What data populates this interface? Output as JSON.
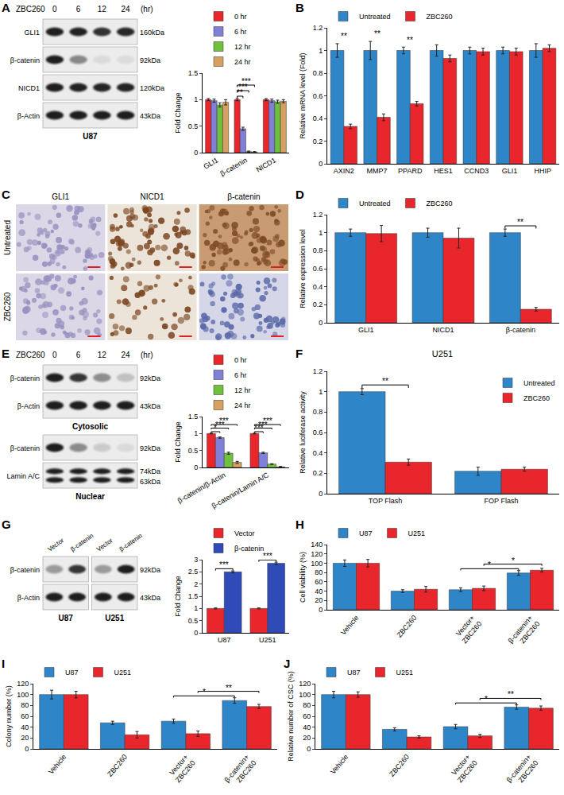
{
  "chart_data": [
    {
      "type": "bar",
      "ylabel": "Fold Change",
      "categories": [
        "GLI1",
        "β-catenin",
        "NICD1"
      ],
      "series": [
        {
          "name": "0 hr",
          "color": "#e8262b",
          "values": [
            1,
            1,
            1
          ],
          "errors": [
            0.02,
            0.02,
            0.02
          ]
        },
        {
          "name": "6 hr",
          "color": "#8080d8",
          "values": [
            0.98,
            0.45,
            0.98
          ],
          "errors": [
            0.03,
            0.03,
            0.03
          ]
        },
        {
          "name": "12 hr",
          "color": "#70c040",
          "values": [
            0.9,
            0.02,
            0.96
          ],
          "errors": [
            0.04,
            0.01,
            0.03
          ]
        },
        {
          "name": "24 hr",
          "color": "#d6a060",
          "values": [
            0.95,
            0.01,
            0.97
          ],
          "errors": [
            0.05,
            0.01,
            0.03
          ]
        }
      ],
      "ylim": [
        0,
        1.5
      ],
      "yticks": [
        0,
        0.5,
        1,
        1.5
      ],
      "legend": "top",
      "significance": [
        {
          "category": "β-catenin",
          "from": "0 hr",
          "to": "6 hr",
          "label": "**"
        },
        {
          "category": "β-catenin",
          "from": "0 hr",
          "to": "12 hr",
          "label": "***"
        },
        {
          "category": "β-catenin",
          "from": "0 hr",
          "to": "24 hr",
          "label": "***"
        }
      ]
    },
    {
      "type": "bar",
      "panel": "B",
      "ylabel": "Relative mRNA level (Fold)",
      "categories": [
        "AXIN2",
        "MMP7",
        "PPARD",
        "HES1",
        "CCND3",
        "GLI1",
        "HHIP"
      ],
      "series": [
        {
          "name": "Untreated",
          "color": "#2e86c9",
          "values": [
            1,
            1,
            1,
            1,
            1,
            1,
            1
          ],
          "errors": [
            0.06,
            0.08,
            0.03,
            0.05,
            0.03,
            0.03,
            0.06
          ]
        },
        {
          "name": "ZBC260",
          "color": "#e8262b",
          "values": [
            0.33,
            0.41,
            0.53,
            0.93,
            0.99,
            0.99,
            1.02
          ],
          "errors": [
            0.02,
            0.03,
            0.02,
            0.03,
            0.03,
            0.03,
            0.03
          ]
        }
      ],
      "ylim": [
        0,
        1.2
      ],
      "yticks": [
        0,
        0.2,
        0.4,
        0.6,
        0.8,
        1,
        1.2
      ],
      "legend": "top",
      "significance": [
        {
          "category": "AXIN2",
          "label": "**"
        },
        {
          "category": "MMP7",
          "label": "**"
        },
        {
          "category": "PPARD",
          "label": "**"
        }
      ]
    },
    {
      "type": "bar",
      "panel": "D",
      "ylabel": "Relative expression level",
      "categories": [
        "GLI1",
        "NICD1",
        "β-catenin"
      ],
      "series": [
        {
          "name": "Untreated",
          "color": "#2e86c9",
          "values": [
            1,
            1,
            1
          ],
          "errors": [
            0.04,
            0.05,
            0.04
          ]
        },
        {
          "name": "ZBC260",
          "color": "#e8262b",
          "values": [
            0.99,
            0.94,
            0.15
          ],
          "errors": [
            0.09,
            0.11,
            0.02
          ]
        }
      ],
      "ylim": [
        0,
        1.2
      ],
      "yticks": [
        0,
        0.2,
        0.4,
        0.6,
        0.8,
        1,
        1.2
      ],
      "legend": "top",
      "significance": [
        {
          "category": "β-catenin",
          "from": "Untreated",
          "to": "ZBC260",
          "label": "**"
        }
      ]
    },
    {
      "type": "bar",
      "ylabel": "Fold Change",
      "categories": [
        "β-catenin/β-Actin",
        "β-catenin/Lamin A/C"
      ],
      "series": [
        {
          "name": "0 hr",
          "color": "#e8262b",
          "values": [
            1,
            1
          ],
          "errors": [
            0.01,
            0.01
          ]
        },
        {
          "name": "6 hr",
          "color": "#8080d8",
          "values": [
            0.88,
            0.43
          ],
          "errors": [
            0.02,
            0.02
          ]
        },
        {
          "name": "12 hr",
          "color": "#70c040",
          "values": [
            0.42,
            0.1
          ],
          "errors": [
            0.03,
            0.01
          ]
        },
        {
          "name": "24 hr",
          "color": "#d6a060",
          "values": [
            0.15,
            0.02
          ],
          "errors": [
            0.03,
            0.01
          ]
        }
      ],
      "ylim": [
        0,
        1.5
      ],
      "yticks": [
        0,
        0.5,
        1,
        1.5
      ],
      "legend": "top",
      "significance": [
        {
          "category": "β-catenin/β-Actin",
          "from": "0 hr",
          "to": "6 hr",
          "label": "*"
        },
        {
          "category": "β-catenin/β-Actin",
          "from": "0 hr",
          "to": "12 hr",
          "label": "***"
        },
        {
          "category": "β-catenin/β-Actin",
          "from": "0 hr",
          "to": "24 hr",
          "label": "***"
        },
        {
          "category": "β-catenin/Lamin A/C",
          "from": "0 hr",
          "to": "6 hr",
          "label": "***"
        },
        {
          "category": "β-catenin/Lamin A/C",
          "from": "0 hr",
          "to": "12 hr",
          "label": "***"
        },
        {
          "category": "β-catenin/Lamin A/C",
          "from": "0 hr",
          "to": "24 hr",
          "label": "***"
        }
      ]
    },
    {
      "type": "bar",
      "panel": "F",
      "title": "U251",
      "ylabel": "Relative luciferase activity",
      "categories": [
        "TOP Flash",
        "FOP Flash"
      ],
      "series": [
        {
          "name": "Untreated",
          "color": "#2e86c9",
          "values": [
            1,
            0.22
          ],
          "errors": [
            0.03,
            0.04
          ]
        },
        {
          "name": "ZBC260",
          "color": "#e8262b",
          "values": [
            0.31,
            0.24
          ],
          "errors": [
            0.03,
            0.02
          ]
        }
      ],
      "ylim": [
        0,
        1.2
      ],
      "yticks": [
        0,
        0.2,
        0.4,
        0.6,
        0.8,
        1,
        1.2
      ],
      "legend": "top-right",
      "significance": [
        {
          "category": "TOP Flash",
          "from": "Untreated",
          "to": "ZBC260",
          "label": "**"
        }
      ]
    },
    {
      "type": "bar",
      "ylabel": "Fold Change",
      "categories": [
        "U87",
        "U251"
      ],
      "series": [
        {
          "name": "Vector",
          "color": "#e8262b",
          "values": [
            1,
            1
          ],
          "errors": [
            0.02,
            0.02
          ]
        },
        {
          "name": "β-catenin",
          "color": "#2f4bb8",
          "values": [
            2.5,
            2.85
          ],
          "errors": [
            0.04,
            0.05
          ]
        }
      ],
      "ylim": [
        0,
        3
      ],
      "yticks": [
        0,
        0.5,
        1,
        1.5,
        2,
        2.5,
        3
      ],
      "legend": "top",
      "significance": [
        {
          "category": "U87",
          "from": "Vector",
          "to": "β-catenin",
          "label": "***"
        },
        {
          "category": "U251",
          "from": "Vector",
          "to": "β-catenin",
          "label": "***"
        }
      ]
    },
    {
      "type": "bar",
      "panel": "H",
      "ylabel": "Cell viability (%)",
      "categories": [
        "Vehicle",
        "ZBC260",
        "Vector+\nZBC260",
        "β-catenin+\nZBC260"
      ],
      "series": [
        {
          "name": "U87",
          "color": "#2e86c9",
          "values": [
            100,
            40,
            43,
            79
          ],
          "errors": [
            7,
            3,
            4,
            5
          ]
        },
        {
          "name": "U251",
          "color": "#e8262b",
          "values": [
            100,
            44,
            46,
            85
          ],
          "errors": [
            8,
            6,
            5,
            4
          ]
        }
      ],
      "ylim": [
        0,
        140
      ],
      "yticks": [
        0,
        20,
        40,
        60,
        80,
        100,
        120,
        140
      ],
      "legend": "top",
      "significance": [
        {
          "series": "U87",
          "from": "Vector+\nZBC260",
          "to": "β-catenin+\nZBC260",
          "label": "*"
        },
        {
          "series": "U251",
          "from": "Vector+\nZBC260",
          "to": "β-catenin+\nZBC260",
          "label": "*"
        }
      ]
    },
    {
      "type": "bar",
      "panel": "I",
      "ylabel": "Colony number (%)",
      "categories": [
        "Vehicle",
        "ZBC260",
        "Vector+\nZBC260",
        "β-catenin+\nZBC260"
      ],
      "series": [
        {
          "name": "U87",
          "color": "#2e86c9",
          "values": [
            100,
            48,
            51,
            89
          ],
          "errors": [
            8,
            3,
            4,
            5
          ]
        },
        {
          "name": "U251",
          "color": "#e8262b",
          "values": [
            100,
            26,
            28,
            78
          ],
          "errors": [
            6,
            6,
            5,
            4
          ]
        }
      ],
      "ylim": [
        0,
        120
      ],
      "yticks": [
        0,
        20,
        40,
        60,
        80,
        100,
        120
      ],
      "legend": "top",
      "significance": [
        {
          "series": "U87",
          "from": "Vector+\nZBC260",
          "to": "β-catenin+\nZBC260",
          "label": "*"
        },
        {
          "series": "U251",
          "from": "Vector+\nZBC260",
          "to": "β-catenin+\nZBC260",
          "label": "**"
        }
      ]
    },
    {
      "type": "bar",
      "panel": "J",
      "ylabel": "Relative number of CSC (%)",
      "categories": [
        "Vehicle",
        "ZBC260",
        "Vector+\nZBC260",
        "β-catenin+\nZBC260"
      ],
      "series": [
        {
          "name": "U87",
          "color": "#2e86c9",
          "values": [
            100,
            36,
            41,
            77
          ],
          "errors": [
            6,
            3,
            4,
            4
          ]
        },
        {
          "name": "U251",
          "color": "#e8262b",
          "values": [
            100,
            22,
            24,
            75
          ],
          "errors": [
            5,
            2,
            3,
            4
          ]
        }
      ],
      "ylim": [
        0,
        120
      ],
      "yticks": [
        0,
        20,
        40,
        60,
        80,
        100,
        120
      ],
      "legend": "top",
      "significance": [
        {
          "series": "U87",
          "from": "Vector+\nZBC260",
          "to": "β-catenin+\nZBC260",
          "label": "*"
        },
        {
          "series": "U251",
          "from": "Vector+\nZBC260",
          "to": "β-catenin+\nZBC260",
          "label": "**"
        }
      ]
    }
  ],
  "blots": [
    {
      "panel": "A",
      "title": "ZBC260",
      "lanes": [
        "0",
        "6",
        "12",
        "24"
      ],
      "unit": "(hr)",
      "sections": [
        {
          "rows": [
            {
              "label": "GLI1",
              "kda": [
                "160kDa"
              ]
            },
            {
              "label": "β-catenin",
              "kda": [
                "92kDa"
              ]
            },
            {
              "label": "NICD1",
              "kda": [
                "120kDa"
              ]
            },
            {
              "label": "β-Actin",
              "kda": [
                "43kDa"
              ]
            }
          ],
          "caption": "U87"
        }
      ]
    },
    {
      "panel": "E",
      "title": "ZBC260",
      "lanes": [
        "0",
        "6",
        "12",
        "24"
      ],
      "unit": "(hr)",
      "sections": [
        {
          "rows": [
            {
              "label": "β-catenin",
              "kda": [
                "92kDa"
              ]
            },
            {
              "label": "β-Actin",
              "kda": [
                "43kDa"
              ]
            }
          ],
          "caption": "Cytosolic"
        },
        {
          "rows": [
            {
              "label": "β-catenin",
              "kda": [
                "92kDa"
              ]
            },
            {
              "label": "Lamin A/C",
              "kda": [
                "74kDa",
                "63kDa"
              ]
            }
          ],
          "caption": "Nuclear"
        }
      ]
    },
    {
      "panel": "G",
      "lanes": [
        "Vector",
        "β-catenin",
        "Vector",
        "β-catenin"
      ],
      "groups": [
        "U87",
        "U251"
      ],
      "sections": [
        {
          "rows": [
            {
              "label": "β-catenin",
              "kda": [
                "92kDa"
              ]
            },
            {
              "label": "β-Actin",
              "kda": [
                "43kDa"
              ]
            }
          ]
        }
      ]
    }
  ],
  "ihc": {
    "panel": "C",
    "columns": [
      "GLI1",
      "NICD1",
      "β-catenin"
    ],
    "rows": [
      "Untreated",
      "ZBC260"
    ]
  }
}
